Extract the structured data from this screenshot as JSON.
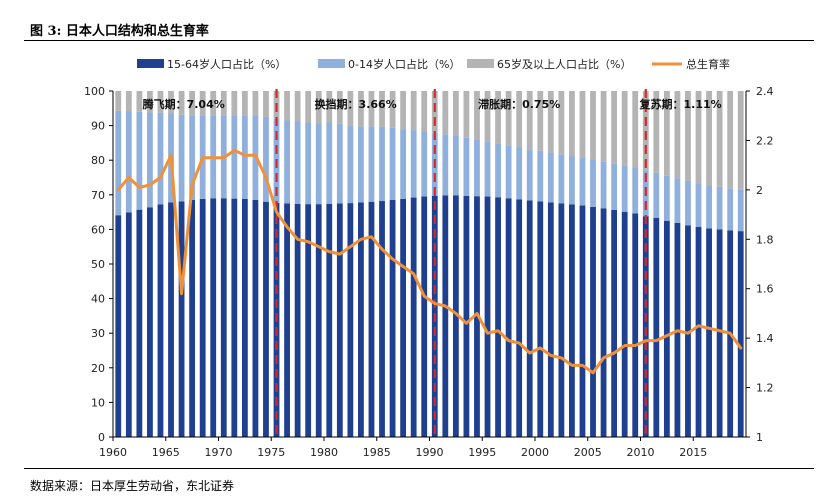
{
  "figure": {
    "title": "图 3: 日本人口结构和总生育率",
    "source": "数据来源：日本厚生劳动省，东北证券"
  },
  "colors": {
    "age_15_64": "#1f3f8f",
    "age_0_14": "#8fb0dc",
    "age_65_plus": "#b4b4b4",
    "tfr": "#f0913a",
    "period_line": "#d9262c"
  },
  "chart_data": {
    "type": "bar",
    "stacked": true,
    "title": "",
    "xlabel": "",
    "ylabel": "",
    "legend_position": "top",
    "grid": false,
    "x": [
      1960,
      1961,
      1962,
      1963,
      1964,
      1965,
      1966,
      1967,
      1968,
      1969,
      1970,
      1971,
      1972,
      1973,
      1974,
      1975,
      1976,
      1977,
      1978,
      1979,
      1980,
      1981,
      1982,
      1983,
      1984,
      1985,
      1986,
      1987,
      1988,
      1989,
      1990,
      1991,
      1992,
      1993,
      1994,
      1995,
      1996,
      1997,
      1998,
      1999,
      2000,
      2001,
      2002,
      2003,
      2004,
      2005,
      2006,
      2007,
      2008,
      2009,
      2010,
      2011,
      2012,
      2013,
      2014,
      2015,
      2016,
      2017,
      2018,
      2019
    ],
    "x_ticks": [
      1960,
      1965,
      1970,
      1975,
      1980,
      1985,
      1990,
      1995,
      2000,
      2005,
      2010,
      2015
    ],
    "y_left": {
      "ylim": [
        0,
        100
      ],
      "ticks": [
        0,
        10,
        20,
        30,
        40,
        50,
        60,
        70,
        80,
        90,
        100
      ]
    },
    "y_right": {
      "ylim": [
        1,
        2.4
      ],
      "ticks": [
        "1",
        "1.2",
        "1.4",
        "1.6",
        "1.8",
        "2",
        "2.2",
        "2.4"
      ]
    },
    "series": [
      {
        "name": "15-64岁人口占比（%）",
        "axis": "left",
        "values": [
          64.1,
          64.9,
          65.7,
          66.4,
          67.2,
          67.8,
          68.1,
          68.5,
          68.8,
          69.0,
          69.0,
          68.9,
          68.8,
          68.5,
          68.0,
          67.7,
          67.5,
          67.4,
          67.3,
          67.3,
          67.4,
          67.5,
          67.6,
          67.8,
          68.0,
          68.2,
          68.5,
          68.8,
          69.2,
          69.5,
          69.7,
          69.8,
          69.8,
          69.7,
          69.6,
          69.5,
          69.3,
          69.0,
          68.7,
          68.4,
          68.1,
          67.8,
          67.5,
          67.2,
          66.9,
          66.5,
          66.1,
          65.6,
          65.1,
          64.6,
          63.8,
          63.3,
          62.5,
          61.9,
          61.2,
          60.7,
          60.3,
          60.0,
          59.7,
          59.5
        ]
      },
      {
        "name": "0-14岁人口占比（%）",
        "axis": "left",
        "values": [
          30.2,
          29.3,
          28.3,
          27.4,
          26.5,
          25.7,
          25.0,
          24.5,
          24.2,
          24.0,
          24.0,
          24.0,
          24.2,
          24.4,
          24.5,
          24.3,
          24.1,
          23.9,
          23.6,
          23.3,
          23.5,
          23.0,
          22.5,
          22.0,
          21.8,
          21.5,
          20.9,
          20.2,
          19.5,
          18.8,
          18.2,
          17.7,
          17.2,
          16.8,
          16.4,
          16.0,
          15.6,
          15.3,
          15.1,
          14.8,
          14.6,
          14.4,
          14.2,
          14.0,
          13.9,
          13.8,
          13.6,
          13.5,
          13.4,
          13.3,
          13.2,
          13.1,
          13.0,
          12.9,
          12.8,
          12.6,
          12.4,
          12.3,
          12.2,
          12.1
        ]
      },
      {
        "name": "65岁及以上人口占比（%）",
        "axis": "left",
        "values": [
          5.7,
          5.8,
          6.0,
          6.2,
          6.3,
          6.5,
          6.9,
          7.0,
          7.0,
          7.0,
          7.0,
          7.1,
          7.0,
          7.1,
          7.5,
          8.0,
          8.4,
          8.7,
          9.1,
          9.4,
          9.1,
          9.5,
          9.9,
          10.2,
          10.2,
          10.3,
          10.6,
          11.0,
          11.3,
          11.7,
          12.1,
          12.5,
          13.0,
          13.5,
          14.0,
          14.5,
          15.1,
          15.7,
          16.2,
          16.8,
          17.3,
          17.8,
          18.3,
          18.8,
          19.2,
          19.7,
          20.3,
          20.9,
          21.5,
          22.1,
          23.0,
          23.6,
          24.5,
          25.2,
          26.0,
          26.7,
          27.3,
          27.7,
          28.1,
          28.4
        ]
      },
      {
        "name": "总生育率",
        "axis": "right",
        "type": "line",
        "values": [
          2.0,
          2.05,
          2.01,
          2.02,
          2.05,
          2.14,
          1.58,
          2.02,
          2.13,
          2.13,
          2.13,
          2.16,
          2.14,
          2.14,
          2.05,
          1.91,
          1.85,
          1.8,
          1.79,
          1.77,
          1.75,
          1.74,
          1.77,
          1.8,
          1.81,
          1.76,
          1.72,
          1.69,
          1.66,
          1.57,
          1.54,
          1.53,
          1.5,
          1.46,
          1.5,
          1.42,
          1.43,
          1.39,
          1.38,
          1.34,
          1.36,
          1.33,
          1.32,
          1.29,
          1.29,
          1.26,
          1.32,
          1.34,
          1.37,
          1.37,
          1.39,
          1.39,
          1.41,
          1.43,
          1.42,
          1.45,
          1.44,
          1.43,
          1.42,
          1.36
        ]
      }
    ],
    "period_lines": [
      1975.5,
      1990.5,
      2010.5
    ],
    "annotations": [
      {
        "text": "腾飞期：7.04%",
        "x": 1966.7
      },
      {
        "text": "换挡期：3.66%",
        "x": 1983.0
      },
      {
        "text": "滞胀期：0.75%",
        "x": 1998.5
      },
      {
        "text": "复苏期：1.11%",
        "x": 2013.8
      }
    ]
  }
}
